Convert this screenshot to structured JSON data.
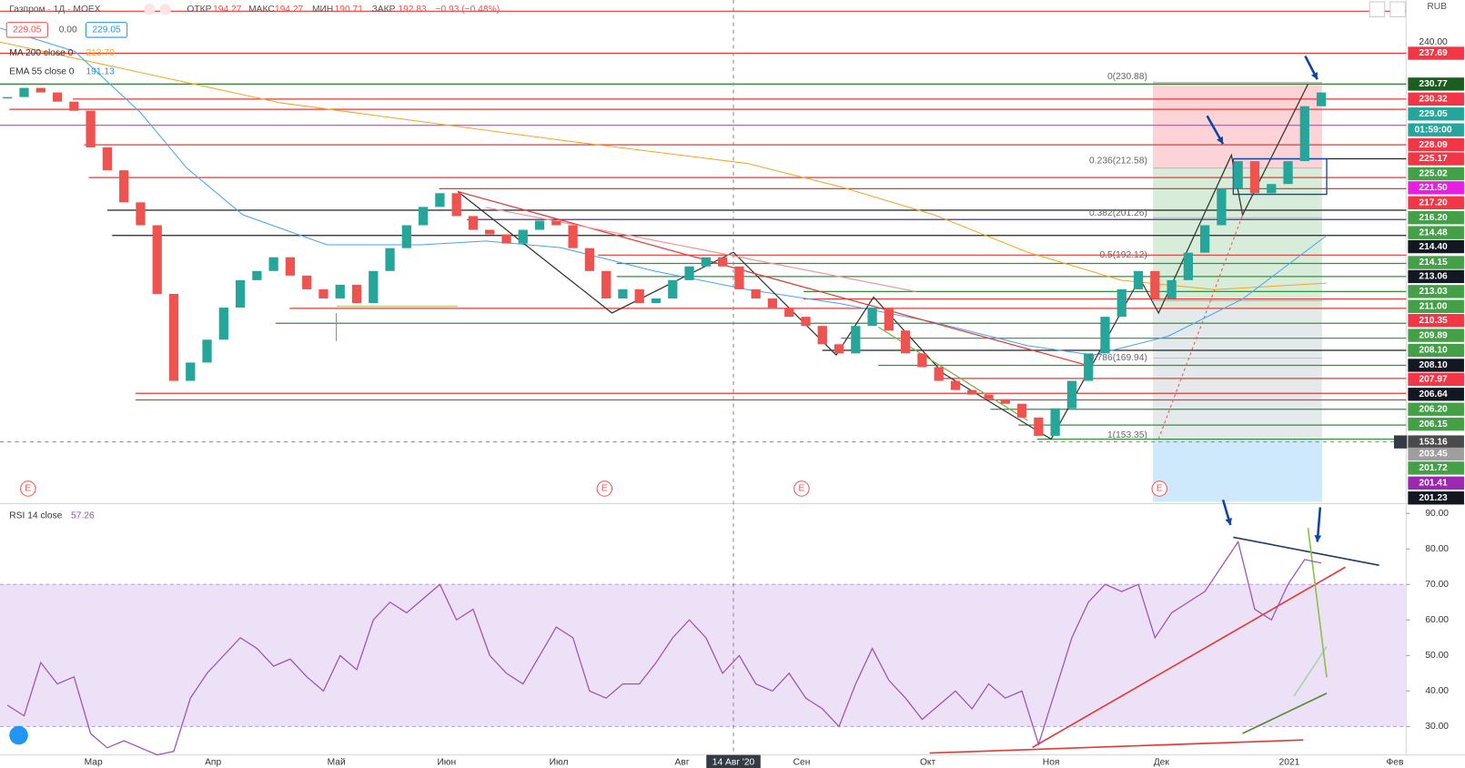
{
  "header": {
    "symbol": "Газпром · 1Д · MOEX",
    "open_label": "ОТКР",
    "open": "194.27",
    "high_label": "МАКС",
    "high": "194.27",
    "low_label": "МИН",
    "low": "190.71",
    "close_label": "ЗАКР",
    "close": "192.83",
    "change": "−0.93 (−0.48%)",
    "bid": "229.05",
    "spread": "0.00",
    "ask": "229.05",
    "currency": "RUB"
  },
  "legend": {
    "ma_name": "MA 200 close 0",
    "ma_value": "213.70",
    "ema_name": "EMA 55 close 0",
    "ema_value": "191.13",
    "rsi_name": "RSI 14 close",
    "rsi_value": "57.26"
  },
  "price_axis_labels": [
    {
      "label": "240.00"
    },
    {
      "label": "237.69",
      "color": "#f23645"
    },
    {
      "label": "230.77",
      "color": "#1b5e20"
    },
    {
      "label": "230.32",
      "color": "#f23645"
    },
    {
      "label": "229.05",
      "color": "#26a69a"
    },
    {
      "label": "01:59:00",
      "color": "#26a69a"
    },
    {
      "label": "228.09",
      "color": "#f23645"
    },
    {
      "label": "225.17",
      "color": "#f23645"
    },
    {
      "label": "225.02",
      "color": "#43a047"
    },
    {
      "label": "221.50",
      "color": "#e91ee3"
    },
    {
      "label": "217.20",
      "color": "#f23645"
    },
    {
      "label": "216.20",
      "color": "#43a047"
    },
    {
      "label": "214.48",
      "color": "#43a047"
    },
    {
      "label": "214.40",
      "color": "#131722"
    },
    {
      "label": "214.15",
      "color": "#43a047"
    },
    {
      "label": "213.06",
      "color": "#131722"
    },
    {
      "label": "213.03",
      "color": "#43a047"
    },
    {
      "label": "211.00",
      "color": "#43a047"
    },
    {
      "label": "210.35",
      "color": "#f23645"
    },
    {
      "label": "209.89",
      "color": "#43a047"
    },
    {
      "label": "208.10",
      "color": "#43a047"
    },
    {
      "label": "208.10",
      "color": "#131722"
    },
    {
      "label": "207.97",
      "color": "#f23645"
    },
    {
      "label": "206.64",
      "color": "#131722"
    },
    {
      "label": "206.20",
      "color": "#43a047"
    },
    {
      "label": "206.15",
      "color": "#43a047"
    },
    {
      "label": "153.16",
      "color": "#4a4a4a"
    },
    {
      "label": "203.45",
      "color": "#9e9e9e"
    },
    {
      "label": "201.72",
      "color": "#43a047"
    },
    {
      "label": "201.41",
      "color": "#9c27b0"
    },
    {
      "label": "201.23",
      "color": "#131722"
    }
  ],
  "fib_labels": [
    "0(230.88)",
    "0.236(212.58)",
    "0.382(201.26)",
    "0.5(192.12)",
    "0.786(169.94)",
    "1(153.35)"
  ],
  "time_axis": [
    "Мар",
    "Апр",
    "Май",
    "Июн",
    "Июл",
    "Авг",
    "Сен",
    "Окт",
    "Ноя",
    "Дек",
    "2021",
    "Фев"
  ],
  "crosshair_date": "14 Авг '20",
  "chart_data": [
    {
      "type": "candlestick",
      "up_color": "#26a69a",
      "down_color": "#ef5350",
      "ylim": [
        139.6,
        249.2
      ],
      "values": [
        228,
        230,
        229,
        227,
        225,
        217,
        212,
        205,
        200,
        185,
        166,
        170,
        175,
        182,
        188,
        190,
        193,
        189,
        186,
        184,
        187,
        183,
        190,
        195,
        200,
        204,
        207,
        202,
        199,
        198,
        196,
        199,
        201,
        200,
        195,
        190,
        184,
        186,
        183,
        184,
        188,
        191,
        193,
        191,
        186,
        184,
        182,
        180,
        178,
        174,
        172,
        178,
        182,
        177,
        172,
        169,
        166,
        164,
        163,
        162,
        161,
        158,
        154,
        160,
        166,
        172,
        180,
        186,
        190,
        184,
        188,
        194,
        200,
        208,
        214,
        207,
        209,
        214,
        226,
        229
      ]
    },
    {
      "type": "line",
      "color": "#9c4fb7",
      "band": [
        30,
        70
      ],
      "band_color": "#ede1f7",
      "ylim": [
        22,
        92.5
      ],
      "yticks": [
        {
          "value": 90,
          "label": "90.00"
        },
        {
          "value": 80,
          "label": "80.00"
        },
        {
          "value": 70,
          "label": "70.00"
        },
        {
          "value": 60,
          "label": "60.00"
        },
        {
          "value": 50,
          "label": "50.00"
        },
        {
          "value": 40,
          "label": "40.00"
        },
        {
          "value": 30,
          "label": "30.00"
        }
      ],
      "values": [
        36,
        33,
        48,
        42,
        44,
        28,
        24,
        26,
        24,
        22,
        23,
        38,
        45,
        50,
        55,
        52,
        47,
        49,
        44,
        40,
        50,
        46,
        60,
        65,
        62,
        66,
        70,
        60,
        63,
        50,
        45,
        42,
        50,
        58,
        55,
        40,
        38,
        42,
        42,
        48,
        55,
        60,
        55,
        45,
        50,
        42,
        40,
        45,
        38,
        35,
        30,
        42,
        52,
        43,
        38,
        32,
        36,
        40,
        35,
        42,
        38,
        40,
        25,
        40,
        55,
        65,
        70,
        68,
        70,
        55,
        62,
        65,
        68,
        75,
        82,
        63,
        60,
        70,
        77,
        76
      ]
    }
  ]
}
